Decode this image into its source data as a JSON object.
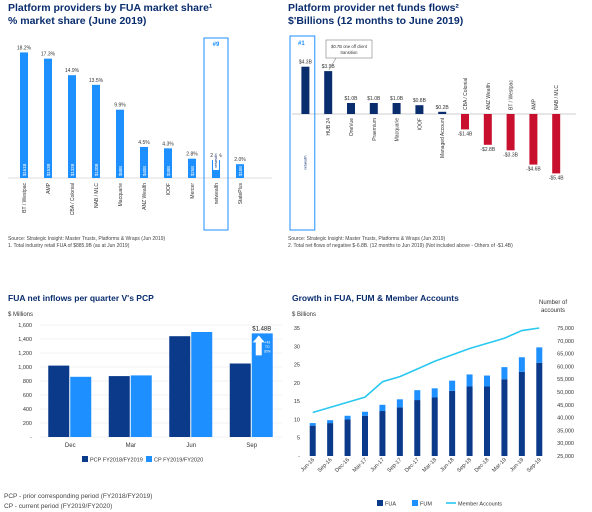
{
  "colors": {
    "title": "#0a2d6e",
    "blue": "#1e8fff",
    "navy": "#0a2d6e",
    "red": "#c8102e",
    "line": "#28c8f0",
    "grid": "#e6e6e6",
    "pcp": "#0b3a8a",
    "cp": "#1e8fff",
    "fum": "#1e90ff",
    "fua": "#0b3a8a"
  },
  "icons": {
    "arrow": "up-arrow-icon",
    "netwealth": "netwealth-logo"
  },
  "panel1": {
    "title1": "Platform providers by FUA market share¹",
    "title2": "% market share (June 2019)",
    "source": "Source: Strategic Insight: Master Trusts, Platforms & Wraps (Jun 2019)",
    "note": "1.       Total industry retail FUA of $885.9B (as at Jun 2019)",
    "highlight_label": "#9"
  },
  "panel2": {
    "title1": "Platform provider net funds flows²",
    "title2": "$'Billions (12 months to June 2019)",
    "source": "Source: Strategic Insight: Master Trusts, Platforms & Wraps (Jun 2019)",
    "note": "2.       Total net flows of negative $-6.8B. (12 months to Jun 2019) (Not included above - Others of -$1.4B)",
    "highlight_label": "#1",
    "callout": [
      "$0.7B one off client",
      "transition"
    ]
  },
  "panel3": {
    "title": "FUA net inflows per quarter V's PCP",
    "ylabel": "$ Millions",
    "annot": "$1.48B",
    "arrow_text": [
      "+43",
      "TO",
      "30%"
    ],
    "foot1": "PCP - prior corresponding period (FY2018/FY2019)",
    "foot2": "CP - current period (FY2019/FY2020)"
  },
  "panel4": {
    "title": "Growth in FUA, FUM & Member Accounts",
    "ylabel": "$ Billions",
    "y2label": [
      "Number of",
      "accounts"
    ]
  },
  "chart_data": [
    {
      "type": "bar",
      "title": "Platform providers by FUA market share",
      "categories": [
        "BT / Westpac",
        "AMP",
        "CBA / Colonial",
        "NAB / MLC",
        "Macquarie",
        "ANZ Wealth",
        "IOOF",
        "Mercer",
        "netwealth",
        "StatePlus"
      ],
      "values": [
        18.2,
        17.3,
        14.9,
        13.5,
        9.9,
        4.5,
        4.3,
        2.8,
        2.6,
        2.0
      ],
      "value_labels": [
        "18.2%",
        "17.3%",
        "14.9%",
        "13.5%",
        "9.9%",
        "4.5%",
        "4.3%",
        "2.8%",
        "2.6%",
        "2.0%"
      ],
      "inner_labels": [
        "$161B",
        "$153B",
        "$132B",
        "$120B",
        "$88B",
        "$40B",
        "$38B",
        "$25B",
        "$23B",
        "$18B"
      ],
      "ylim": [
        0,
        20
      ]
    },
    {
      "type": "bar",
      "title": "Platform provider net funds flows",
      "categories": [
        "netwealth",
        "HUB 24",
        "OneVue",
        "Praemium",
        "Macquarie",
        "IOOF",
        "Managed Account",
        "CBA / Colonial",
        "ANZ Wealth",
        "BT / Westpac",
        "AMP",
        "NAB / MLC"
      ],
      "values": [
        4.3,
        3.9,
        1.0,
        1.0,
        1.0,
        0.8,
        0.2,
        -1.4,
        -2.8,
        -3.3,
        -4.6,
        -5.4
      ],
      "value_labels": [
        "$4.3B",
        "$3.9B",
        "$1.0B",
        "$1.0B",
        "$1.0B",
        "$0.8B",
        "$0.2B",
        "-$1.4B",
        "-$2.8B",
        "-$3.3B",
        "-$4.6B",
        "-$5.4B"
      ],
      "ylim": [
        -6,
        5
      ]
    },
    {
      "type": "bar",
      "title": "FUA net inflows per quarter V's PCP",
      "categories": [
        "Dec",
        "Mar",
        "Jun",
        "Sep"
      ],
      "series": [
        {
          "name": "PCP FY2018/FY2019",
          "values": [
            1020,
            870,
            1440,
            1050
          ]
        },
        {
          "name": "CP FY2019/FY2020",
          "values": [
            860,
            880,
            1500,
            1480
          ]
        }
      ],
      "ylabel": "$ Millions",
      "yticks": [
        "-",
        "200",
        "400",
        "600",
        "800",
        "1,000",
        "1,200",
        "1,400",
        "1,600"
      ],
      "ylim": [
        0,
        1600
      ]
    },
    {
      "type": "bar",
      "title": "Growth in FUA, FUM & Member Accounts",
      "categories": [
        "Jun-16",
        "Sep-16",
        "Dec-16",
        "Mar-17",
        "Jun-17",
        "Sep-17",
        "Dec-17",
        "Mar-18",
        "Jun-18",
        "Sep-18",
        "Dec-18",
        "Mar-19",
        "Jun-19",
        "Sep-19"
      ],
      "series": [
        {
          "name": "FUA",
          "values": [
            8.3,
            9.0,
            10.0,
            11.0,
            12.3,
            13.3,
            15.3,
            16.0,
            17.8,
            19.0,
            19.0,
            21.0,
            23.0,
            25.5
          ]
        },
        {
          "name": "FUM",
          "values": [
            0.7,
            0.8,
            1.0,
            1.1,
            1.7,
            2.2,
            2.7,
            2.5,
            2.8,
            3.3,
            3.0,
            3.3,
            4.0,
            4.2
          ]
        },
        {
          "name": "Member Accounts",
          "axis": "right",
          "values": [
            42000,
            44000,
            46000,
            48000,
            54000,
            56000,
            59000,
            62000,
            64500,
            67000,
            69000,
            71000,
            74000,
            75000
          ]
        }
      ],
      "ylabel": "$ Billions",
      "y2label": "Number of accounts",
      "yticks": [
        "-",
        "5",
        "10",
        "15",
        "20",
        "25",
        "30",
        "35"
      ],
      "y2ticks": [
        "25,000",
        "30,000",
        "35,000",
        "40,000",
        "45,000",
        "50,000",
        "55,000",
        "60,000",
        "65,000",
        "70,000",
        "75,000"
      ],
      "ylim": [
        0,
        35
      ],
      "y2lim": [
        25000,
        75000
      ]
    }
  ]
}
